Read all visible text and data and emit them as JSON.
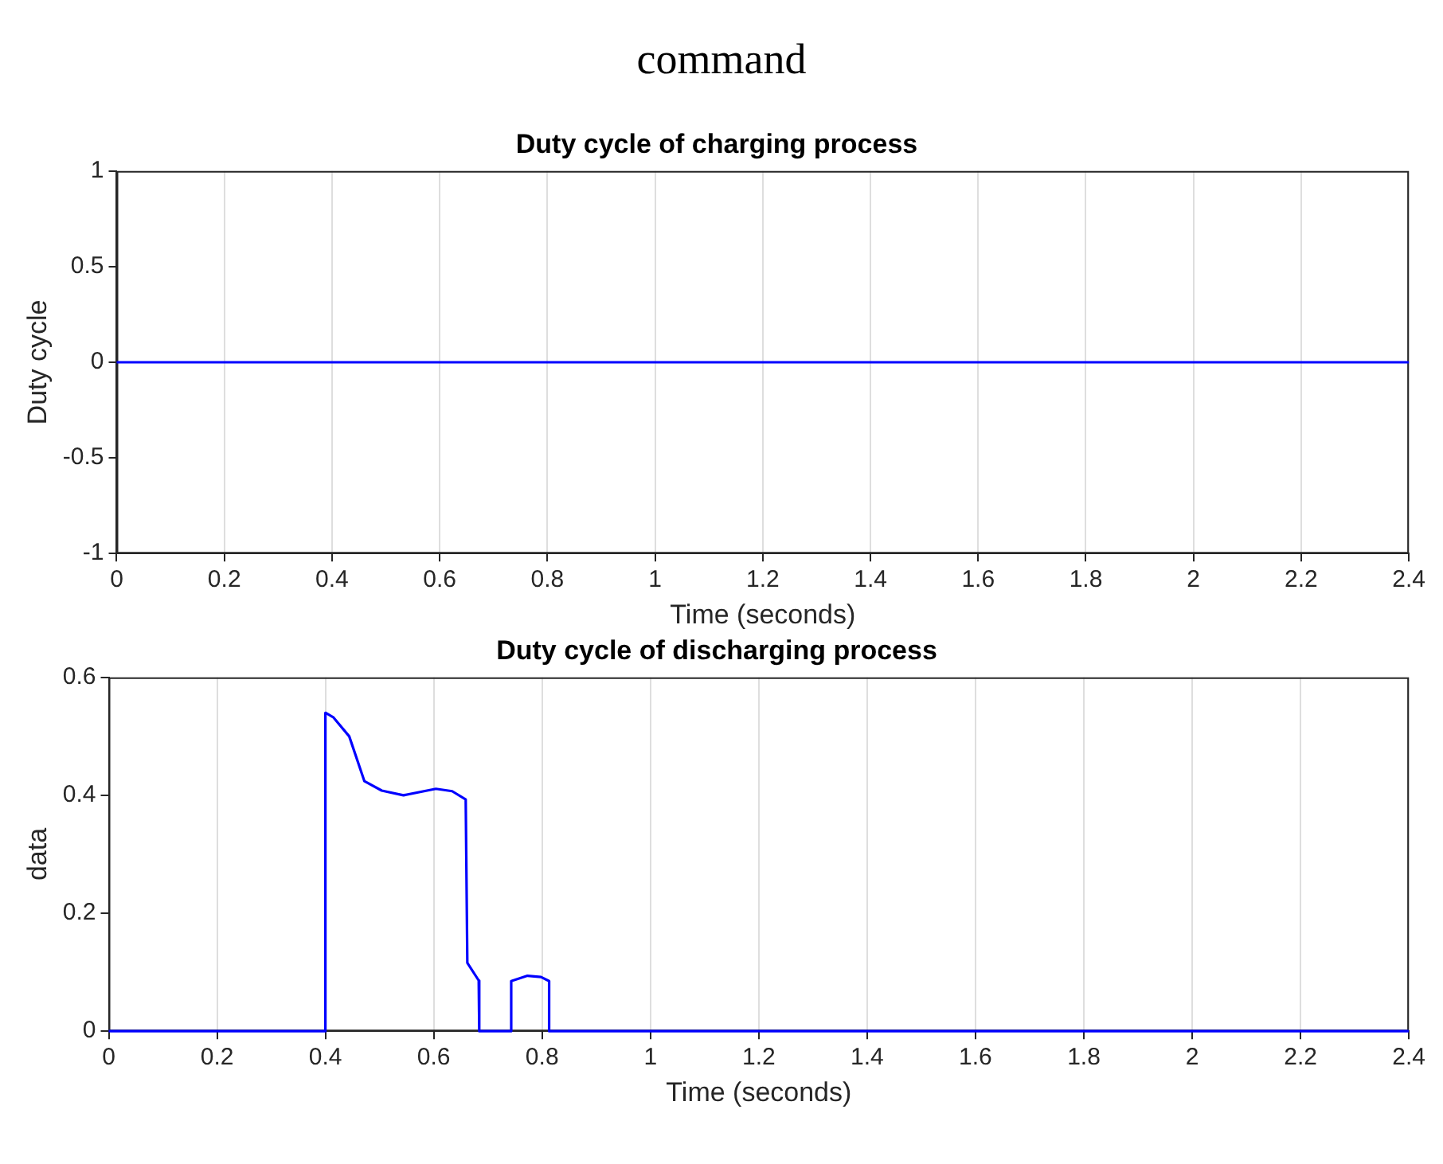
{
  "chart_data": [
    {
      "type": "line",
      "title": "Duty cycle of charging process",
      "xlabel": "Time (seconds)",
      "ylabel": "Duty cycle",
      "annotations": [
        "command"
      ],
      "series": [
        {
          "color": "#0000ff",
          "x": [
            0,
            2.4
          ],
          "values": [
            0,
            0
          ]
        }
      ],
      "xlim": [
        0,
        2.4
      ],
      "xticks": [
        0,
        0.2,
        0.4,
        0.6,
        0.8,
        1,
        1.2,
        1.4,
        1.6,
        1.8,
        2,
        2.2,
        2.4
      ],
      "ylim": [
        -1,
        1
      ],
      "yticks": [
        -1,
        -0.5,
        0,
        0.5,
        1
      ],
      "grid": "x",
      "marker": "none",
      "line_style": "solid"
    },
    {
      "type": "line",
      "title": "Duty cycle of discharging process",
      "xlabel": "Time (seconds)",
      "ylabel": "data",
      "series": [
        {
          "color": "#0000ff",
          "x": [
            0,
            0.4,
            0.4,
            0.415,
            0.444,
            0.472,
            0.504,
            0.544,
            0.604,
            0.634,
            0.659,
            0.662,
            0.683,
            0.684,
            0.743,
            0.743,
            0.773,
            0.798,
            0.813,
            0.813,
            2.4
          ],
          "values": [
            0,
            0,
            0.54,
            0.532,
            0.5,
            0.424,
            0.408,
            0.4,
            0.411,
            0.407,
            0.393,
            0.116,
            0.086,
            0,
            0,
            0.085,
            0.094,
            0.092,
            0.085,
            0,
            0
          ]
        }
      ],
      "xlim": [
        0,
        2.4
      ],
      "xticks": [
        0,
        0.2,
        0.4,
        0.6,
        0.8,
        1,
        1.2,
        1.4,
        1.6,
        1.8,
        2,
        2.2,
        2.4
      ],
      "ylim": [
        0,
        0.6
      ],
      "yticks": [
        0,
        0.2,
        0.4,
        0.6
      ],
      "grid": "x",
      "marker": "none",
      "line_style": "solid"
    }
  ]
}
